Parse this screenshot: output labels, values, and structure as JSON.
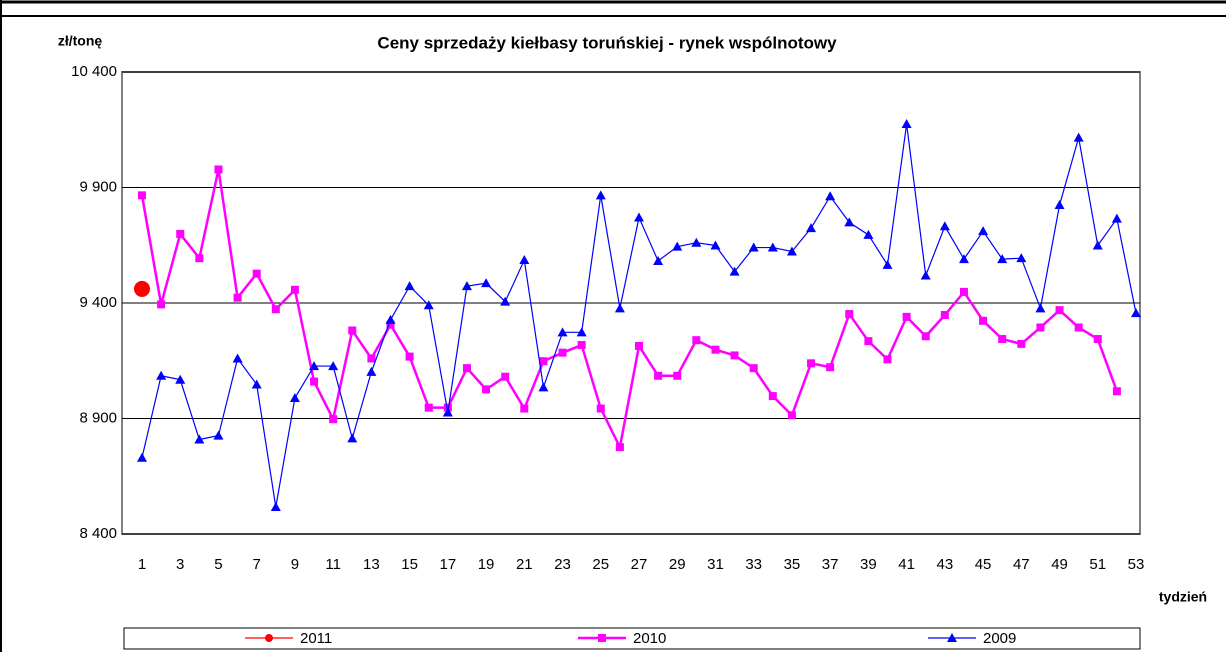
{
  "chart_data": {
    "type": "line",
    "title": "Ceny sprzedaży kiełbasy toruńskiej - rynek wspólnotowy",
    "y_label": "zł/tonę",
    "x_label": "tydzień",
    "categories": [
      "1",
      null,
      "3",
      null,
      "5",
      null,
      "7",
      null,
      "9",
      null,
      "11",
      null,
      "13",
      null,
      "15",
      null,
      "17",
      null,
      "19",
      null,
      "21",
      null,
      "23",
      null,
      "25",
      null,
      "27",
      null,
      "29",
      null,
      "31",
      null,
      "33",
      null,
      "35",
      null,
      "37",
      null,
      "39",
      null,
      "41",
      null,
      "43",
      null,
      "45",
      null,
      "47",
      null,
      "49",
      null,
      "51",
      null,
      "53"
    ],
    "series": [
      {
        "name": "2011",
        "color": "#ff0000",
        "marker": "circle",
        "values": [
          9461,
          null,
          null,
          null,
          null,
          null,
          null,
          null,
          null,
          null,
          null,
          null,
          null,
          null,
          null,
          null,
          null,
          null,
          null,
          null,
          null,
          null,
          null,
          null,
          null,
          null,
          null,
          null,
          null,
          null,
          null,
          null,
          null,
          null,
          null,
          null,
          null,
          null,
          null,
          null,
          null,
          null,
          null,
          null,
          null,
          null,
          null,
          null,
          null,
          null,
          null,
          null,
          null
        ]
      },
      {
        "name": "2010",
        "color": "#ff00ff",
        "marker": "square",
        "values": [
          9866,
          9394,
          9699,
          9594,
          9978,
          9423,
          9527,
          9373,
          9457,
          9060,
          8897,
          9281,
          9160,
          9306,
          9168,
          8947,
          8947,
          9118,
          9026,
          9081,
          8943,
          9148,
          9185,
          9218,
          8943,
          8776,
          9214,
          9085,
          9085,
          9239,
          9198,
          9173,
          9118,
          8997,
          8914,
          9139,
          9122,
          9352,
          9235,
          9156,
          9340,
          9256,
          9348,
          9448,
          9323,
          9244,
          9223,
          9294,
          9369,
          9294,
          9244,
          9018,
          null
        ]
      },
      {
        "name": "2009",
        "color": "#0000ff",
        "marker": "triangle",
        "values": [
          8730,
          9085,
          9068,
          8809,
          8826,
          9160,
          9047,
          8517,
          8989,
          9127,
          9127,
          8814,
          9102,
          9327,
          9473,
          9390,
          8926,
          9473,
          9486,
          9406,
          9586,
          9035,
          9273,
          9273,
          9866,
          9377,
          9770,
          9582,
          9644,
          9661,
          9649,
          9536,
          9640,
          9640,
          9623,
          9724,
          9862,
          9749,
          9695,
          9565,
          10175,
          9519,
          9732,
          9590,
          9711,
          9590,
          9594,
          9377,
          9824,
          10116,
          9649,
          9765,
          9356
        ]
      }
    ],
    "ylim": [
      8400,
      10400
    ],
    "yticks": [
      {
        "value": 8400,
        "label": "8 400"
      },
      {
        "value": 8900,
        "label": "8 900"
      },
      {
        "value": 9400,
        "label": "9 400"
      },
      {
        "value": 9900,
        "label": "9 900"
      },
      {
        "value": 10400,
        "label": "10 400"
      }
    ],
    "grid": true,
    "legend": "bottom"
  }
}
